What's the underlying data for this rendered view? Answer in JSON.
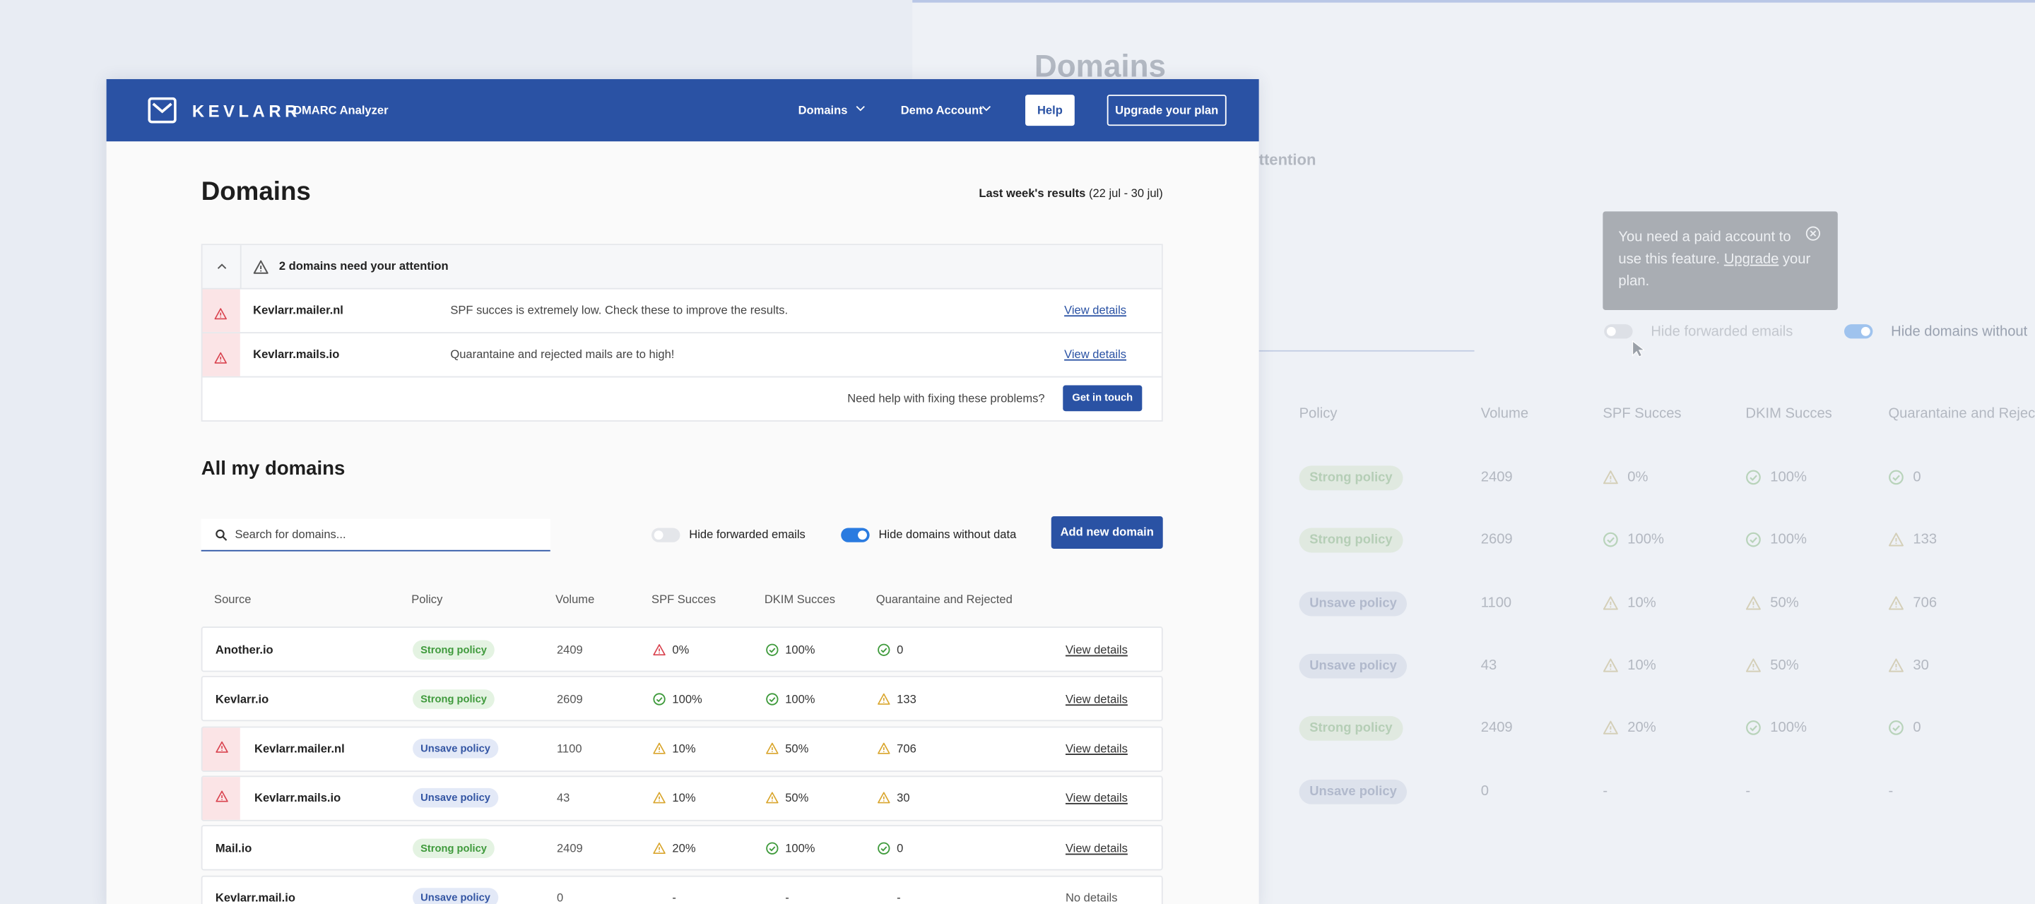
{
  "background": {
    "title": "Domains",
    "attention_fragment": "ttention",
    "tooltip": {
      "text": "You need a paid account to use this feature.",
      "link": "Upgrade",
      "text_after": "your plan."
    },
    "toggles": [
      {
        "label": "Hide forwarded emails",
        "on": false
      },
      {
        "label": "Hide domains without",
        "on": true
      }
    ],
    "headers": [
      "Policy",
      "Volume",
      "SPF Succes",
      "DKIM Succes",
      "Quarantaine and Reject"
    ],
    "rows": [
      {
        "policy": "Strong policy",
        "strong": true,
        "volume": 2409,
        "spf": "0%",
        "spf_status": "warn",
        "dkim": "100%",
        "dkim_status": "ok",
        "qr": "0",
        "qr_status": "ok"
      },
      {
        "policy": "Strong policy",
        "strong": true,
        "volume": 2609,
        "spf": "100%",
        "spf_status": "ok",
        "dkim": "100%",
        "dkim_status": "ok",
        "qr": "133",
        "qr_status": "warn"
      },
      {
        "policy": "Unsave policy",
        "strong": false,
        "volume": 1100,
        "spf": "10%",
        "spf_status": "warn",
        "dkim": "50%",
        "dkim_status": "warn",
        "qr": "706",
        "qr_status": "warn"
      },
      {
        "policy": "Unsave policy",
        "strong": false,
        "volume": 43,
        "spf": "10%",
        "spf_status": "warn",
        "dkim": "50%",
        "dkim_status": "warn",
        "qr": "30",
        "qr_status": "warn"
      },
      {
        "policy": "Strong policy",
        "strong": true,
        "volume": 2409,
        "spf": "20%",
        "spf_status": "warn",
        "dkim": "100%",
        "dkim_status": "ok",
        "qr": "0",
        "qr_status": "ok"
      },
      {
        "policy": "Unsave policy",
        "strong": false,
        "volume": 0,
        "spf": "-",
        "dkim": "-",
        "qr": "-"
      }
    ]
  },
  "header": {
    "brand": "KEVLARR",
    "product": "DMARC Analyzer",
    "nav": [
      "Domains",
      "Demo Account"
    ],
    "help": "Help",
    "upgrade": "Upgrade your plan"
  },
  "page": {
    "title": "Domains",
    "period_label": "Last week's results",
    "period": "(22 jul - 30 jul)"
  },
  "attention": {
    "title": "2 domains need your attention",
    "items": [
      {
        "domain": "Kevlarr.mailer.nl",
        "message": "SPF succes is extremely low. Check these to improve the results.",
        "link": "View details"
      },
      {
        "domain": "Kevlarr.mails.io",
        "message": "Quarantaine and rejected mails are to high!",
        "link": "View details"
      }
    ],
    "help_text": "Need help with fixing these problems?",
    "button": "Get in touch"
  },
  "domains": {
    "title": "All my domains",
    "search_placeholder": "Search for domains...",
    "toggles": [
      {
        "label": "Hide forwarded emails",
        "on": false
      },
      {
        "label": "Hide domains without data",
        "on": true
      }
    ],
    "add_button": "Add new domain",
    "headers": [
      "Source",
      "Policy",
      "Volume",
      "SPF Succes",
      "DKIM Succes",
      "Quarantaine and Rejected"
    ],
    "rows": [
      {
        "source": "Another.io",
        "flagged": false,
        "policy": "Strong policy",
        "strong": true,
        "volume": 2409,
        "spf": "0%",
        "spf_status": "bad",
        "dkim": "100%",
        "dkim_status": "ok",
        "qr": "0",
        "qr_status": "ok",
        "link": "View details"
      },
      {
        "source": "Kevlarr.io",
        "flagged": false,
        "policy": "Strong policy",
        "strong": true,
        "volume": 2609,
        "spf": "100%",
        "spf_status": "ok",
        "dkim": "100%",
        "dkim_status": "ok",
        "qr": "133",
        "qr_status": "warn",
        "link": "View details"
      },
      {
        "source": "Kevlarr.mailer.nl",
        "flagged": true,
        "policy": "Unsave policy",
        "strong": false,
        "volume": 1100,
        "spf": "10%",
        "spf_status": "warn",
        "dkim": "50%",
        "dkim_status": "warn",
        "qr": "706",
        "qr_status": "warn",
        "link": "View details"
      },
      {
        "source": "Kevlarr.mails.io",
        "flagged": true,
        "policy": "Unsave policy",
        "strong": false,
        "volume": 43,
        "spf": "10%",
        "spf_status": "warn",
        "dkim": "50%",
        "dkim_status": "warn",
        "qr": "30",
        "qr_status": "warn",
        "link": "View details"
      },
      {
        "source": "Mail.io",
        "flagged": false,
        "policy": "Strong policy",
        "strong": true,
        "volume": 2409,
        "spf": "20%",
        "spf_status": "warn",
        "dkim": "100%",
        "dkim_status": "ok",
        "qr": "0",
        "qr_status": "ok",
        "link": "View details"
      },
      {
        "source": "Kevlarr.mail.io",
        "flagged": false,
        "policy": "Unsave policy",
        "strong": false,
        "volume": 0,
        "spf": "-",
        "dkim": "-",
        "qr": "-",
        "no_link": "No details"
      }
    ]
  }
}
